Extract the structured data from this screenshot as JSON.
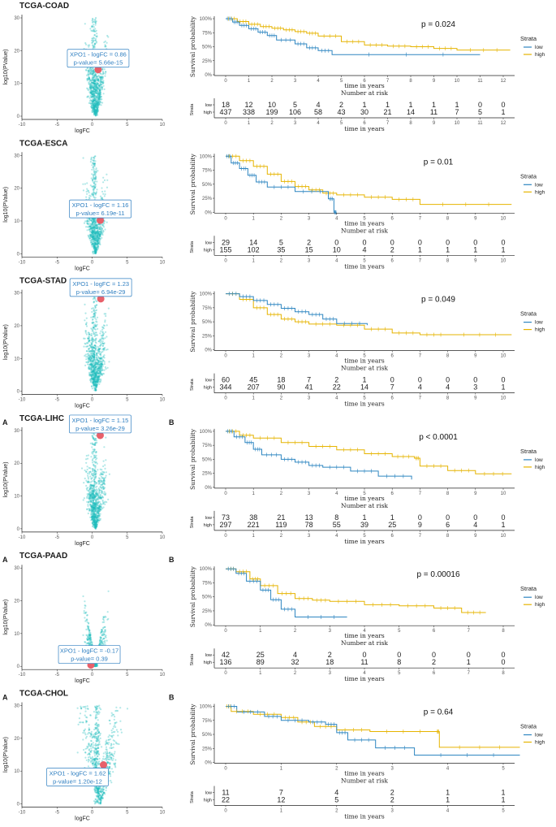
{
  "colors": {
    "low": "#2e86c1",
    "high": "#e6b400",
    "volcano": "#1fbcbc",
    "highlight": "#e8606a",
    "annotation": "#2f7fc1"
  },
  "legend": {
    "title": "Strata",
    "low": "low",
    "high": "high"
  },
  "labels": {
    "volcano_x": "logFC",
    "volcano_y": "log10(PValue)",
    "surv_y": "Survival probability",
    "surv_x": "time in years",
    "risk_title": "Number at risk",
    "risk_strata": "Strata",
    "risk_low": "low",
    "risk_high": "high"
  },
  "chart_data": [
    {
      "cancer": "TCGA-COAD",
      "panel_a": "",
      "panel_b": "",
      "volcano": {
        "type": "scatter",
        "xlim": [
          -10,
          10
        ],
        "xticks": [
          "-10",
          "-5",
          "0",
          "5",
          "10"
        ],
        "ylim": [
          0,
          30
        ],
        "yticks": [
          "0",
          "10",
          "20",
          "30"
        ],
        "gene": "XPO1",
        "logFC": 0.86,
        "logFC_label": "XPO1 - logFC = 0.86",
        "pvalue_label": "p-value= 5.66e-15",
        "neglog10p": 14.2
      },
      "survival": {
        "type": "line",
        "p_value": "p = 0.024",
        "xmax": 12,
        "xticks": [
          "0",
          "1",
          "2",
          "3",
          "4",
          "5",
          "6",
          "7",
          "8",
          "9",
          "10",
          "11",
          "12"
        ],
        "yticks": [
          "0%",
          "25%",
          "50%",
          "75%",
          "100%"
        ],
        "low": [
          [
            0,
            1
          ],
          [
            0.3,
            0.94
          ],
          [
            0.6,
            0.88
          ],
          [
            1.0,
            0.82
          ],
          [
            1.4,
            0.76
          ],
          [
            1.8,
            0.7
          ],
          [
            2.2,
            0.62
          ],
          [
            3.0,
            0.55
          ],
          [
            3.5,
            0.48
          ],
          [
            4.0,
            0.43
          ],
          [
            4.6,
            0.36
          ],
          [
            11,
            0.36
          ]
        ],
        "high": [
          [
            0,
            1
          ],
          [
            0.5,
            0.95
          ],
          [
            1,
            0.9
          ],
          [
            1.5,
            0.86
          ],
          [
            2,
            0.83
          ],
          [
            2.5,
            0.8
          ],
          [
            3,
            0.77
          ],
          [
            3.5,
            0.74
          ],
          [
            4,
            0.69
          ],
          [
            5,
            0.59
          ],
          [
            6,
            0.53
          ],
          [
            7,
            0.51
          ],
          [
            8,
            0.5
          ],
          [
            9,
            0.47
          ],
          [
            10,
            0.44
          ],
          [
            12.3,
            0.44
          ]
        ]
      },
      "risk": {
        "low": [
          "18",
          "12",
          "10",
          "5",
          "4",
          "2",
          "1",
          "1",
          "1",
          "1",
          "1",
          "0",
          "0"
        ],
        "high": [
          "437",
          "338",
          "199",
          "106",
          "58",
          "43",
          "30",
          "21",
          "14",
          "11",
          "7",
          "5",
          "1"
        ]
      }
    },
    {
      "cancer": "TCGA-ESCA",
      "panel_a": "",
      "panel_b": "",
      "volcano": {
        "type": "scatter",
        "xlim": [
          -10,
          10
        ],
        "xticks": [
          "-10",
          "-5",
          "0",
          "5",
          "10"
        ],
        "ylim": [
          0,
          30
        ],
        "yticks": [
          "0",
          "10",
          "20",
          "30"
        ],
        "gene": "XPO1",
        "logFC": 1.16,
        "logFC_label": "XPO1 - logFC = 1.16",
        "pvalue_label": "p-value= 6.19e-11",
        "neglog10p": 10.2
      },
      "survival": {
        "type": "line",
        "p_value": "p = 0.01",
        "xmax": 10,
        "xticks": [
          "0",
          "1",
          "2",
          "3",
          "4",
          "5",
          "6",
          "7",
          "8",
          "9",
          "10"
        ],
        "yticks": [
          "0%",
          "25%",
          "50%",
          "75%",
          "100%"
        ],
        "low": [
          [
            0,
            1
          ],
          [
            0.2,
            0.88
          ],
          [
            0.5,
            0.78
          ],
          [
            0.8,
            0.66
          ],
          [
            1.1,
            0.54
          ],
          [
            1.5,
            0.45
          ],
          [
            2.5,
            0.37
          ],
          [
            3.7,
            0.24
          ],
          [
            3.9,
            0
          ],
          [
            4,
            0
          ]
        ],
        "high": [
          [
            0,
            1
          ],
          [
            0.5,
            0.92
          ],
          [
            1,
            0.82
          ],
          [
            1.5,
            0.68
          ],
          [
            2,
            0.55
          ],
          [
            2.5,
            0.46
          ],
          [
            3,
            0.4
          ],
          [
            3.5,
            0.34
          ],
          [
            4,
            0.31
          ],
          [
            5,
            0.27
          ],
          [
            6,
            0.23
          ],
          [
            7,
            0.14
          ],
          [
            10.3,
            0.14
          ]
        ]
      },
      "risk": {
        "low": [
          "29",
          "14",
          "5",
          "2",
          "0",
          "0",
          "0",
          "0",
          "0",
          "0",
          "0"
        ],
        "high": [
          "155",
          "102",
          "35",
          "15",
          "10",
          "4",
          "2",
          "1",
          "1",
          "1",
          "1"
        ]
      }
    },
    {
      "cancer": "TCGA-STAD",
      "panel_a": "",
      "panel_b": "",
      "volcano": {
        "type": "scatter",
        "xlim": [
          -10,
          10
        ],
        "xticks": [
          "-10",
          "-5",
          "0",
          "5",
          "10"
        ],
        "ylim": [
          0,
          30
        ],
        "yticks": [
          "0",
          "10",
          "20",
          "30"
        ],
        "gene": "XPO1",
        "logFC": 1.23,
        "logFC_label": "XPO1 - logFC = 1.23",
        "pvalue_label": "p-value= 6.94e-29",
        "neglog10p": 28.2
      },
      "survival": {
        "type": "line",
        "p_value": "p = 0.049",
        "xmax": 10,
        "xticks": [
          "0",
          "1",
          "2",
          "3",
          "4",
          "5",
          "6",
          "7",
          "8",
          "9",
          "10"
        ],
        "yticks": [
          "0%",
          "25%",
          "50%",
          "75%",
          "100%"
        ],
        "low": [
          [
            0,
            1
          ],
          [
            0.5,
            0.95
          ],
          [
            1,
            0.88
          ],
          [
            1.5,
            0.81
          ],
          [
            2,
            0.74
          ],
          [
            2.5,
            0.68
          ],
          [
            3,
            0.63
          ],
          [
            3.5,
            0.55
          ],
          [
            4,
            0.47
          ],
          [
            5.1,
            0.44
          ]
        ],
        "high": [
          [
            0,
            1
          ],
          [
            0.5,
            0.9
          ],
          [
            1,
            0.75
          ],
          [
            1.5,
            0.63
          ],
          [
            2,
            0.55
          ],
          [
            2.5,
            0.5
          ],
          [
            3,
            0.46
          ],
          [
            4,
            0.44
          ],
          [
            5,
            0.37
          ],
          [
            6,
            0.3
          ],
          [
            7,
            0.27
          ],
          [
            8,
            0.27
          ],
          [
            10.3,
            0.27
          ]
        ]
      },
      "risk": {
        "low": [
          "60",
          "45",
          "18",
          "7",
          "2",
          "1",
          "0",
          "0",
          "0",
          "0",
          "0"
        ],
        "high": [
          "344",
          "207",
          "90",
          "41",
          "22",
          "14",
          "7",
          "4",
          "4",
          "3",
          "1"
        ]
      }
    },
    {
      "cancer": "TCGA-LIHC",
      "panel_a": "A",
      "panel_b": "B",
      "volcano": {
        "type": "scatter",
        "xlim": [
          -10,
          10
        ],
        "xticks": [
          "-10",
          "-5",
          "0",
          "5",
          "10"
        ],
        "ylim": [
          0,
          30
        ],
        "yticks": [
          "0",
          "10",
          "20",
          "30"
        ],
        "gene": "XPO1",
        "logFC": 1.15,
        "logFC_label": "XPO1 - logFC = 1.15",
        "pvalue_label": "p-value= 3.26e-29",
        "neglog10p": 28.5
      },
      "survival": {
        "type": "line",
        "p_value": "p < 0.0001",
        "xmax": 10,
        "xticks": [
          "0",
          "1",
          "2",
          "3",
          "4",
          "5",
          "6",
          "7",
          "8",
          "9",
          "10"
        ],
        "yticks": [
          "0%",
          "25%",
          "50%",
          "75%",
          "100%"
        ],
        "low": [
          [
            0,
            1
          ],
          [
            0.3,
            0.9
          ],
          [
            0.7,
            0.8
          ],
          [
            1,
            0.68
          ],
          [
            1.3,
            0.58
          ],
          [
            2,
            0.5
          ],
          [
            2.5,
            0.45
          ],
          [
            3,
            0.39
          ],
          [
            3.5,
            0.36
          ],
          [
            4.5,
            0.29
          ],
          [
            5.5,
            0.2
          ],
          [
            6.7,
            0.14
          ]
        ],
        "high": [
          [
            0,
            1
          ],
          [
            0.5,
            0.93
          ],
          [
            1,
            0.88
          ],
          [
            2,
            0.8
          ],
          [
            3,
            0.73
          ],
          [
            4,
            0.67
          ],
          [
            5,
            0.6
          ],
          [
            6,
            0.55
          ],
          [
            6.8,
            0.52
          ],
          [
            7,
            0.38
          ],
          [
            8,
            0.3
          ],
          [
            9,
            0.24
          ],
          [
            10.3,
            0.24
          ]
        ]
      },
      "risk": {
        "low": [
          "73",
          "38",
          "21",
          "13",
          "8",
          "1",
          "1",
          "0",
          "0",
          "0",
          "0"
        ],
        "high": [
          "297",
          "221",
          "119",
          "78",
          "55",
          "39",
          "25",
          "9",
          "6",
          "4",
          "1"
        ]
      }
    },
    {
      "cancer": "TCGA-PAAD",
      "panel_a": "A",
      "panel_b": "B",
      "volcano": {
        "type": "scatter",
        "xlim": [
          -10,
          10
        ],
        "xticks": [
          "-10",
          "-5",
          "0",
          "5",
          "10"
        ],
        "ylim": [
          0,
          30
        ],
        "yticks": [
          "0",
          "10",
          "20",
          "30"
        ],
        "gene": "XPO1",
        "logFC": -0.17,
        "logFC_label": "XPO1 - logFC = -0.17",
        "pvalue_label": "p-value= 0.39",
        "neglog10p": 0.4
      },
      "survival": {
        "type": "line",
        "p_value": "p = 0.00016",
        "xmax": 8,
        "xticks": [
          "0",
          "1",
          "2",
          "3",
          "4",
          "5",
          "6",
          "7",
          "8"
        ],
        "yticks": [
          "0%",
          "25%",
          "50%",
          "75%",
          "100%"
        ],
        "low": [
          [
            0,
            1
          ],
          [
            0.3,
            0.92
          ],
          [
            0.6,
            0.78
          ],
          [
            1,
            0.62
          ],
          [
            1.3,
            0.45
          ],
          [
            1.6,
            0.28
          ],
          [
            2,
            0.14
          ],
          [
            3.5,
            0.14
          ]
        ],
        "high": [
          [
            0,
            1
          ],
          [
            0.3,
            0.95
          ],
          [
            0.7,
            0.82
          ],
          [
            1,
            0.7
          ],
          [
            1.5,
            0.56
          ],
          [
            2,
            0.47
          ],
          [
            2.5,
            0.44
          ],
          [
            3,
            0.42
          ],
          [
            4,
            0.36
          ],
          [
            5,
            0.34
          ],
          [
            6,
            0.3
          ],
          [
            6.8,
            0.22
          ],
          [
            7.5,
            0.22
          ]
        ]
      },
      "risk": {
        "low": [
          "42",
          "25",
          "4",
          "2",
          "0",
          "0",
          "0",
          "0",
          "0"
        ],
        "high": [
          "136",
          "89",
          "32",
          "18",
          "11",
          "8",
          "2",
          "1",
          "0"
        ]
      }
    },
    {
      "cancer": "TCGA-CHOL",
      "panel_a": "A",
      "panel_b": "B",
      "volcano": {
        "type": "scatter",
        "xlim": [
          -10,
          10
        ],
        "xticks": [
          "-10",
          "-5",
          "0",
          "5",
          "10"
        ],
        "ylim": [
          0,
          30
        ],
        "yticks": [
          "0",
          "10",
          "20",
          "30"
        ],
        "gene": "XPO1",
        "logFC": 1.62,
        "logFC_label": "XPO1 - logFC = 1.62",
        "pvalue_label": "p-value= 1.20e-12",
        "neglog10p": 11.9
      },
      "survival": {
        "type": "line",
        "p_value": "p = 0.64",
        "xmax": 5,
        "xticks": [
          "0",
          "1",
          "2",
          "3",
          "4",
          "5"
        ],
        "yticks": [
          "0%",
          "25%",
          "50%",
          "75%",
          "100%"
        ],
        "low": [
          [
            0,
            1
          ],
          [
            0.2,
            0.9
          ],
          [
            0.7,
            0.82
          ],
          [
            1,
            0.75
          ],
          [
            1.5,
            0.72
          ],
          [
            1.8,
            0.68
          ],
          [
            2,
            0.53
          ],
          [
            2.2,
            0.4
          ],
          [
            2.7,
            0.26
          ],
          [
            3.4,
            0.13
          ],
          [
            5.3,
            0.13
          ]
        ],
        "high": [
          [
            0,
            1
          ],
          [
            0.1,
            0.91
          ],
          [
            0.5,
            0.86
          ],
          [
            1,
            0.8
          ],
          [
            1.3,
            0.72
          ],
          [
            1.6,
            0.64
          ],
          [
            2,
            0.58
          ],
          [
            2.6,
            0.55
          ],
          [
            3.8,
            0.55
          ],
          [
            3.85,
            0.27
          ],
          [
            5.3,
            0.27
          ]
        ]
      },
      "risk": {
        "low": [
          "11",
          "7",
          "4",
          "2",
          "1",
          "1"
        ],
        "high": [
          "22",
          "12",
          "5",
          "2",
          "1",
          "1"
        ]
      }
    }
  ]
}
